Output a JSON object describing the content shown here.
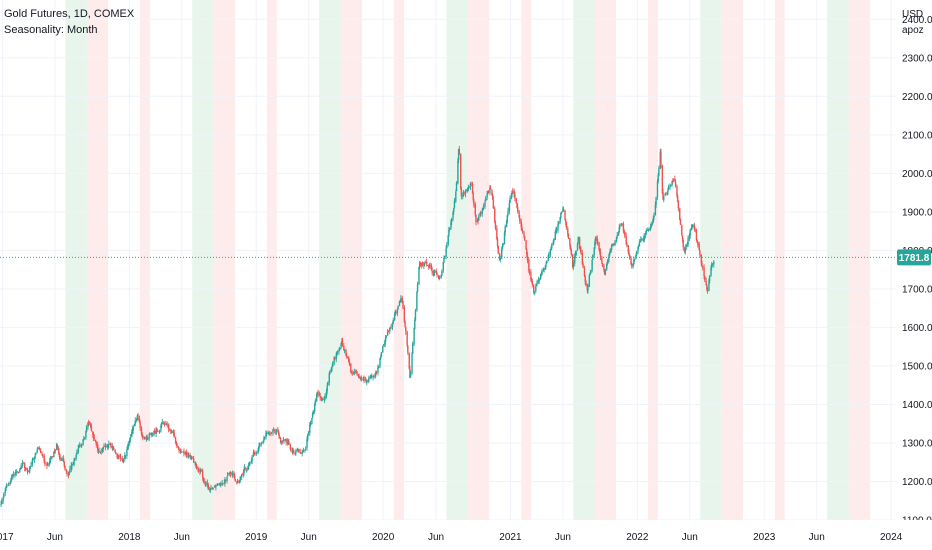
{
  "header": {
    "title": "Gold Futures, 1D, COMEX",
    "indicator": "Seasonality: Month"
  },
  "price_scale": {
    "currency": "USD",
    "user": "apoz",
    "last_price_label": "1781.8"
  },
  "colors": {
    "up_candle": "#26a69a",
    "down_candle": "#ef5350",
    "last_price_line": "#26a69a",
    "bullish_band": "#e8f5ec",
    "bearish_band": "#fdeceb",
    "grid": "#f0f3fa",
    "axis_text": "#131722"
  },
  "chart_data": {
    "type": "candlestick",
    "title": "Gold Futures, 1D, COMEX",
    "ylabel": "USD",
    "ylim": [
      1100,
      2450
    ],
    "xlim": [
      "2016-12-25",
      "2024-01-15"
    ],
    "y_ticks": [
      "1100.0",
      "1200.0",
      "1300.0",
      "1400.0",
      "1500.0",
      "1600.0",
      "1700.0",
      "1800.0",
      "1900.0",
      "2000.0",
      "2100.0",
      "2200.0",
      "2300.0",
      "2400.0"
    ],
    "x_ticks": [
      {
        "date": "2017-01-01",
        "label": "2017"
      },
      {
        "date": "2017-06-01",
        "label": "Jun"
      },
      {
        "date": "2018-01-01",
        "label": "2018"
      },
      {
        "date": "2018-06-01",
        "label": "Jun"
      },
      {
        "date": "2019-01-01",
        "label": "2019"
      },
      {
        "date": "2019-06-01",
        "label": "Jun"
      },
      {
        "date": "2020-01-01",
        "label": "2020"
      },
      {
        "date": "2020-06-01",
        "label": "Jun"
      },
      {
        "date": "2021-01-01",
        "label": "2021"
      },
      {
        "date": "2021-06-01",
        "label": "Jun"
      },
      {
        "date": "2022-01-01",
        "label": "2022"
      },
      {
        "date": "2022-06-01",
        "label": "Jun"
      },
      {
        "date": "2023-01-01",
        "label": "2023"
      },
      {
        "date": "2023-06-01",
        "label": "Jun"
      },
      {
        "date": "2024-01-01",
        "label": "2024"
      }
    ],
    "last_price": 1781.8,
    "price_path": [
      [
        "2016-12-28",
        1140
      ],
      [
        "2017-01-10",
        1185
      ],
      [
        "2017-02-01",
        1215
      ],
      [
        "2017-03-01",
        1250
      ],
      [
        "2017-03-15",
        1215
      ],
      [
        "2017-04-15",
        1285
      ],
      [
        "2017-05-10",
        1225
      ],
      [
        "2017-06-06",
        1295
      ],
      [
        "2017-07-10",
        1215
      ],
      [
        "2017-08-15",
        1290
      ],
      [
        "2017-09-08",
        1355
      ],
      [
        "2017-10-06",
        1270
      ],
      [
        "2017-11-15",
        1285
      ],
      [
        "2017-12-12",
        1245
      ],
      [
        "2018-01-25",
        1365
      ],
      [
        "2018-02-08",
        1310
      ],
      [
        "2018-03-15",
        1330
      ],
      [
        "2018-04-11",
        1355
      ],
      [
        "2018-05-20",
        1295
      ],
      [
        "2018-06-15",
        1280
      ],
      [
        "2018-07-10",
        1245
      ],
      [
        "2018-08-16",
        1175
      ],
      [
        "2018-09-15",
        1205
      ],
      [
        "2018-10-15",
        1225
      ],
      [
        "2018-11-13",
        1200
      ],
      [
        "2018-12-20",
        1265
      ],
      [
        "2019-01-15",
        1295
      ],
      [
        "2019-02-20",
        1345
      ],
      [
        "2019-03-15",
        1305
      ],
      [
        "2019-04-23",
        1280
      ],
      [
        "2019-05-20",
        1285
      ],
      [
        "2019-06-25",
        1425
      ],
      [
        "2019-07-15",
        1415
      ],
      [
        "2019-08-12",
        1525
      ],
      [
        "2019-09-04",
        1565
      ],
      [
        "2019-10-01",
        1480
      ],
      [
        "2019-11-12",
        1460
      ],
      [
        "2019-12-15",
        1480
      ],
      [
        "2020-01-08",
        1575
      ],
      [
        "2020-02-24",
        1680
      ],
      [
        "2020-03-19",
        1470
      ],
      [
        "2020-04-14",
        1765
      ],
      [
        "2020-05-15",
        1760
      ],
      [
        "2020-06-15",
        1730
      ],
      [
        "2020-07-28",
        1960
      ],
      [
        "2020-08-06",
        2075
      ],
      [
        "2020-08-12",
        1940
      ],
      [
        "2020-09-10",
        1970
      ],
      [
        "2020-09-24",
        1870
      ],
      [
        "2020-11-06",
        1955
      ],
      [
        "2020-11-30",
        1780
      ],
      [
        "2021-01-06",
        1955
      ],
      [
        "2021-02-10",
        1840
      ],
      [
        "2021-03-08",
        1680
      ],
      [
        "2021-04-15",
        1770
      ],
      [
        "2021-06-01",
        1910
      ],
      [
        "2021-06-29",
        1750
      ],
      [
        "2021-07-15",
        1830
      ],
      [
        "2021-08-09",
        1690
      ],
      [
        "2021-09-03",
        1830
      ],
      [
        "2021-09-29",
        1745
      ],
      [
        "2021-11-16",
        1870
      ],
      [
        "2021-12-15",
        1770
      ],
      [
        "2022-01-25",
        1850
      ],
      [
        "2022-02-20",
        1900
      ],
      [
        "2022-03-08",
        2070
      ],
      [
        "2022-03-15",
        1930
      ],
      [
        "2022-04-18",
        1990
      ],
      [
        "2022-05-16",
        1790
      ],
      [
        "2022-06-10",
        1880
      ],
      [
        "2022-07-21",
        1700
      ],
      [
        "2022-08-01",
        1770
      ],
      [
        "2022-08-10",
        1780
      ]
    ],
    "seasonality_bands": [
      {
        "start": "2017-07-01",
        "end": "2017-08-31",
        "sign": "positive"
      },
      {
        "start": "2017-09-01",
        "end": "2017-10-31",
        "sign": "negative"
      },
      {
        "start": "2018-02-01",
        "end": "2018-02-28",
        "sign": "negative"
      },
      {
        "start": "2018-07-01",
        "end": "2018-08-31",
        "sign": "positive"
      },
      {
        "start": "2018-09-01",
        "end": "2018-10-31",
        "sign": "negative"
      },
      {
        "start": "2019-02-01",
        "end": "2019-02-28",
        "sign": "negative"
      },
      {
        "start": "2019-07-01",
        "end": "2019-08-31",
        "sign": "positive"
      },
      {
        "start": "2019-09-01",
        "end": "2019-10-31",
        "sign": "negative"
      },
      {
        "start": "2020-02-01",
        "end": "2020-02-29",
        "sign": "negative"
      },
      {
        "start": "2020-07-01",
        "end": "2020-08-31",
        "sign": "positive"
      },
      {
        "start": "2020-09-01",
        "end": "2020-10-31",
        "sign": "negative"
      },
      {
        "start": "2021-02-01",
        "end": "2021-02-28",
        "sign": "negative"
      },
      {
        "start": "2021-07-01",
        "end": "2021-08-31",
        "sign": "positive"
      },
      {
        "start": "2021-09-01",
        "end": "2021-10-31",
        "sign": "negative"
      },
      {
        "start": "2022-02-01",
        "end": "2022-02-28",
        "sign": "negative"
      },
      {
        "start": "2022-07-01",
        "end": "2022-08-31",
        "sign": "positive"
      },
      {
        "start": "2022-09-01",
        "end": "2022-10-31",
        "sign": "negative"
      },
      {
        "start": "2023-02-01",
        "end": "2023-02-28",
        "sign": "negative"
      },
      {
        "start": "2023-07-01",
        "end": "2023-08-31",
        "sign": "positive"
      },
      {
        "start": "2023-09-01",
        "end": "2023-10-31",
        "sign": "negative"
      }
    ],
    "grid": true
  }
}
